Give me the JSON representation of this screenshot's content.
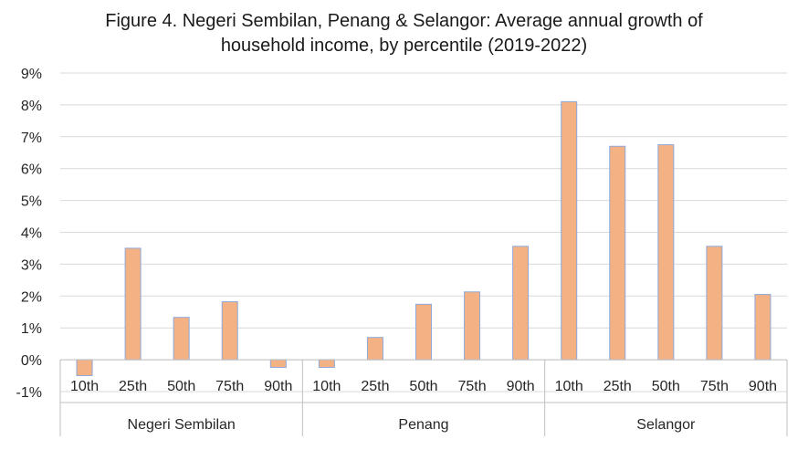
{
  "title_line1": "Figure 4. Negeri Sembilan, Penang & Selangor: Average annual growth of",
  "title_line2": "household income, by percentile (2019-2022)",
  "colors": {
    "bar_fill": "#f4b183",
    "bar_stroke": "#8ea9db",
    "grid": "#d9d9d9",
    "axis": "#bfbfbf"
  },
  "chart_data": {
    "type": "bar",
    "title": "Figure 4. Negeri Sembilan, Penang & Selangor: Average annual growth of household income, by percentile (2019-2022)",
    "xlabel": "",
    "ylabel": "",
    "ylim": [
      -1,
      9
    ],
    "y_ticks": [
      "-1%",
      "0%",
      "1%",
      "2%",
      "3%",
      "4%",
      "5%",
      "6%",
      "7%",
      "8%",
      "9%"
    ],
    "grid": true,
    "legend": "none",
    "groups": [
      {
        "name": "Negeri Sembilan",
        "categories": [
          "10th",
          "25th",
          "50th",
          "75th",
          "90th"
        ],
        "values": [
          -0.5,
          3.5,
          1.33,
          1.82,
          -0.24
        ]
      },
      {
        "name": "Penang",
        "categories": [
          "10th",
          "25th",
          "50th",
          "75th",
          "90th"
        ],
        "values": [
          -0.24,
          0.7,
          1.74,
          2.13,
          3.56
        ]
      },
      {
        "name": "Selangor",
        "categories": [
          "10th",
          "25th",
          "50th",
          "75th",
          "90th"
        ],
        "values": [
          8.1,
          6.7,
          6.75,
          3.56,
          2.05
        ]
      }
    ]
  }
}
